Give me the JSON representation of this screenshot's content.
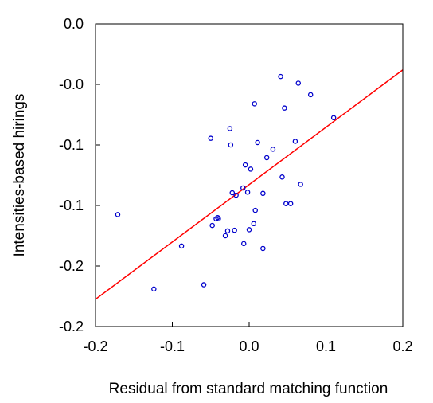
{
  "chart_data": {
    "type": "scatter",
    "xlabel": "Residual from standard matching function",
    "ylabel": "Intensities-based hirings",
    "x_ticks": [
      {
        "value": -0.2,
        "label": "-0.2"
      },
      {
        "value": -0.1,
        "label": "-0.1"
      },
      {
        "value": 0.0,
        "label": "0.0"
      },
      {
        "value": 0.1,
        "label": "0.1"
      },
      {
        "value": 0.2,
        "label": "0.2"
      }
    ],
    "y_ticks": [
      {
        "value": 0.05,
        "label": "0.0"
      },
      {
        "value": 0.0,
        "label": "-0.0"
      },
      {
        "value": -0.05,
        "label": "-0.1"
      },
      {
        "value": -0.1,
        "label": "-0.1"
      },
      {
        "value": -0.15,
        "label": "-0.2"
      },
      {
        "value": -0.2,
        "label": "-0.2"
      }
    ],
    "xlim": [
      -0.2,
      0.2
    ],
    "ylim": [
      -0.2,
      0.05
    ],
    "grid": false,
    "points": [
      {
        "x": -0.171,
        "y": -0.1075
      },
      {
        "x": -0.124,
        "y": -0.169
      },
      {
        "x": -0.088,
        "y": -0.1335
      },
      {
        "x": -0.059,
        "y": -0.1655
      },
      {
        "x": -0.05,
        "y": -0.0445
      },
      {
        "x": -0.048,
        "y": -0.1165
      },
      {
        "x": -0.043,
        "y": -0.111
      },
      {
        "x": -0.041,
        "y": -0.11
      },
      {
        "x": -0.04,
        "y": -0.111
      },
      {
        "x": -0.031,
        "y": -0.125
      },
      {
        "x": -0.028,
        "y": -0.121
      },
      {
        "x": -0.025,
        "y": -0.0365
      },
      {
        "x": -0.024,
        "y": -0.05
      },
      {
        "x": -0.022,
        "y": -0.0895
      },
      {
        "x": -0.019,
        "y": -0.1205
      },
      {
        "x": -0.017,
        "y": -0.0915
      },
      {
        "x": -0.008,
        "y": -0.0855
      },
      {
        "x": -0.007,
        "y": -0.1315
      },
      {
        "x": -0.005,
        "y": -0.0665
      },
      {
        "x": -0.002,
        "y": -0.089
      },
      {
        "x": 0.0,
        "y": -0.12
      },
      {
        "x": 0.002,
        "y": -0.07
      },
      {
        "x": 0.006,
        "y": -0.115
      },
      {
        "x": 0.007,
        "y": -0.016
      },
      {
        "x": 0.008,
        "y": -0.104
      },
      {
        "x": 0.011,
        "y": -0.048
      },
      {
        "x": 0.018,
        "y": -0.09
      },
      {
        "x": 0.018,
        "y": -0.1355
      },
      {
        "x": 0.023,
        "y": -0.0605
      },
      {
        "x": 0.031,
        "y": -0.0535
      },
      {
        "x": 0.041,
        "y": 0.0065
      },
      {
        "x": 0.043,
        "y": -0.0765
      },
      {
        "x": 0.046,
        "y": -0.0195
      },
      {
        "x": 0.048,
        "y": -0.0985
      },
      {
        "x": 0.054,
        "y": -0.0985
      },
      {
        "x": 0.06,
        "y": -0.047
      },
      {
        "x": 0.064,
        "y": 0.001
      },
      {
        "x": 0.067,
        "y": -0.0825
      },
      {
        "x": 0.08,
        "y": -0.0085
      },
      {
        "x": 0.11,
        "y": -0.0275
      }
    ],
    "fit_line": {
      "x": [
        -0.2,
        0.2
      ],
      "y": [
        -0.1775,
        0.012
      ]
    },
    "marker_color": "#0000cc",
    "line_color": "#ff0000"
  }
}
